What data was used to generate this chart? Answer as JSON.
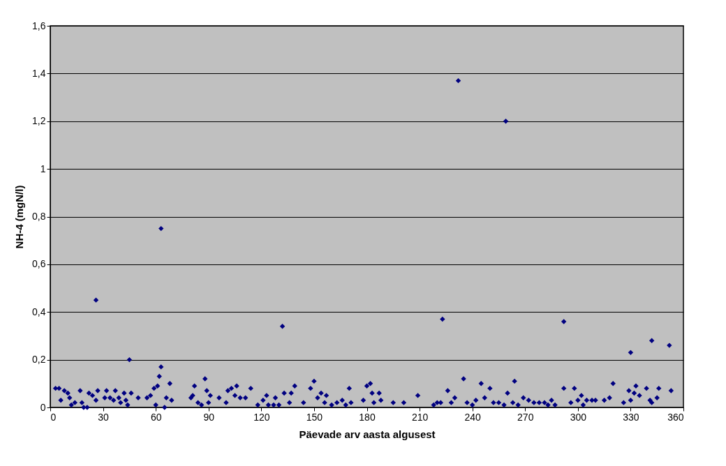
{
  "chart_data": {
    "type": "scatter",
    "xlabel": "Päevade arv aasta algusest",
    "ylabel": "NH-4 (mgN/l)",
    "marker": "diamond",
    "grid": "y",
    "xlim": [
      0,
      360
    ],
    "xticks": [
      0,
      30,
      60,
      90,
      120,
      150,
      180,
      210,
      240,
      270,
      300,
      330,
      360
    ],
    "ylim": [
      0,
      1.6
    ],
    "yticks": [
      0,
      {
        "value": 0.2,
        "label": "0,2"
      },
      {
        "value": 0.4,
        "label": "0,4"
      },
      {
        "value": 0.6,
        "label": "0,6"
      },
      {
        "value": 0.8,
        "label": "0,8"
      },
      1,
      {
        "value": 1.2,
        "label": "1,2"
      },
      {
        "value": 1.4,
        "label": "1,4"
      },
      {
        "value": 1.6,
        "label": "1,6"
      }
    ],
    "series": [
      {
        "color": "#000080",
        "x": [
          26,
          45,
          63,
          63,
          62,
          132,
          223,
          232,
          259,
          292,
          330,
          342,
          352,
          3,
          5,
          6,
          8,
          10,
          11,
          12,
          14,
          17,
          18,
          19,
          21,
          22,
          24,
          26,
          27,
          31,
          32,
          34,
          36,
          37,
          39,
          40,
          42,
          43,
          44,
          46,
          50,
          55,
          57,
          59,
          60,
          61,
          65,
          66,
          68,
          69,
          80,
          81,
          82,
          84,
          86,
          88,
          89,
          90,
          91,
          96,
          100,
          101,
          103,
          105,
          106,
          108,
          111,
          114,
          118,
          121,
          123,
          124,
          127,
          128,
          130,
          133,
          136,
          137,
          139,
          144,
          148,
          150,
          152,
          154,
          156,
          157,
          160,
          163,
          166,
          168,
          170,
          171,
          178,
          180,
          182,
          183,
          184,
          187,
          188,
          195,
          201,
          209,
          218,
          220,
          222,
          226,
          228,
          230,
          235,
          237,
          240,
          242,
          245,
          247,
          250,
          252,
          255,
          258,
          260,
          263,
          264,
          266,
          269,
          272,
          275,
          278,
          281,
          283,
          285,
          287,
          292,
          296,
          298,
          300,
          302,
          303,
          305,
          308,
          310,
          315,
          318,
          320,
          326,
          329,
          330,
          332,
          333,
          335,
          339,
          341,
          342,
          345,
          346,
          353
        ],
        "values": [
          0.45,
          0.2,
          0.75,
          0.17,
          0.13,
          0.34,
          0.37,
          1.37,
          1.2,
          0.36,
          0.23,
          0.28,
          0.26,
          0.08,
          0.08,
          0.03,
          0.07,
          0.06,
          0.04,
          0.01,
          0.02,
          0.07,
          0.02,
          0,
          0,
          0.06,
          0.05,
          0.03,
          0.07,
          0.04,
          0.07,
          0.04,
          0.03,
          0.07,
          0.04,
          0.02,
          0.06,
          0.03,
          0.01,
          0.06,
          0.04,
          0.04,
          0.05,
          0.08,
          0.01,
          0.09,
          0,
          0.04,
          0.1,
          0.03,
          0.04,
          0.05,
          0.09,
          0.02,
          0.01,
          0.12,
          0.07,
          0.02,
          0.05,
          0.04,
          0.02,
          0.07,
          0.08,
          0.05,
          0.09,
          0.04,
          0.04,
          0.08,
          0.01,
          0.03,
          0.05,
          0.01,
          0.01,
          0.04,
          0.01,
          0.06,
          0.02,
          0.06,
          0.09,
          0.02,
          0.08,
          0.11,
          0.04,
          0.06,
          0.02,
          0.05,
          0.01,
          0.02,
          0.03,
          0.01,
          0.08,
          0.02,
          0.03,
          0.09,
          0.1,
          0.06,
          0.02,
          0.06,
          0.03,
          0.02,
          0.02,
          0.05,
          0.01,
          0.02,
          0.02,
          0.07,
          0.02,
          0.04,
          0.12,
          0.02,
          0.01,
          0.03,
          0.1,
          0.04,
          0.08,
          0.02,
          0.02,
          0.01,
          0.06,
          0.02,
          0.11,
          0.01,
          0.04,
          0.03,
          0.02,
          0.02,
          0.02,
          0.01,
          0.03,
          0.01,
          0.08,
          0.02,
          0.08,
          0.03,
          0.05,
          0.01,
          0.03,
          0.03,
          0.03,
          0.03,
          0.04,
          0.1,
          0.02,
          0.07,
          0.03,
          0.06,
          0.09,
          0.05,
          0.08,
          0.03,
          0.02,
          0.04,
          0.08,
          0.07
        ]
      }
    ]
  }
}
